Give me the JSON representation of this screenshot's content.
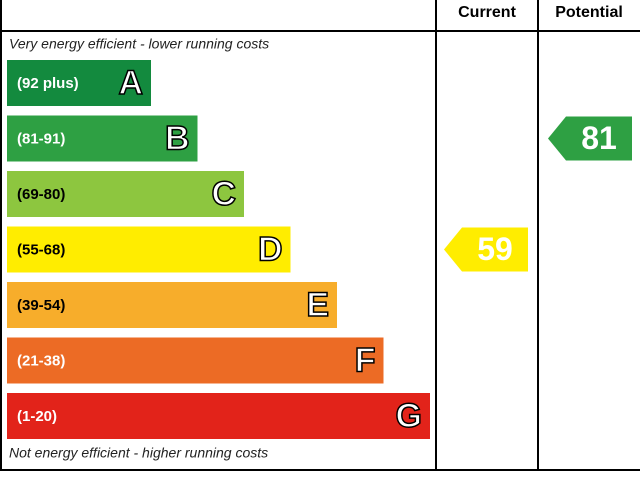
{
  "header": {
    "current": "Current",
    "potential": "Potential"
  },
  "notes": {
    "top": "Very energy efficient - lower running costs",
    "bottom": "Not energy efficient - higher running costs"
  },
  "bands": [
    {
      "range": "(92 plus)",
      "letter": "A",
      "color": "#138a3e"
    },
    {
      "range": "(81-91)",
      "letter": "B",
      "color": "#2ea043"
    },
    {
      "range": "(69-80)",
      "letter": "C",
      "color": "#8dc63f"
    },
    {
      "range": "(55-68)",
      "letter": "D",
      "color": "#ffed00"
    },
    {
      "range": "(39-54)",
      "letter": "E",
      "color": "#f7ad2b"
    },
    {
      "range": "(21-38)",
      "letter": "F",
      "color": "#ec6b25"
    },
    {
      "range": "(1-20)",
      "letter": "G",
      "color": "#e2231a"
    }
  ],
  "ratings": {
    "current": 59,
    "potential": 81
  }
}
